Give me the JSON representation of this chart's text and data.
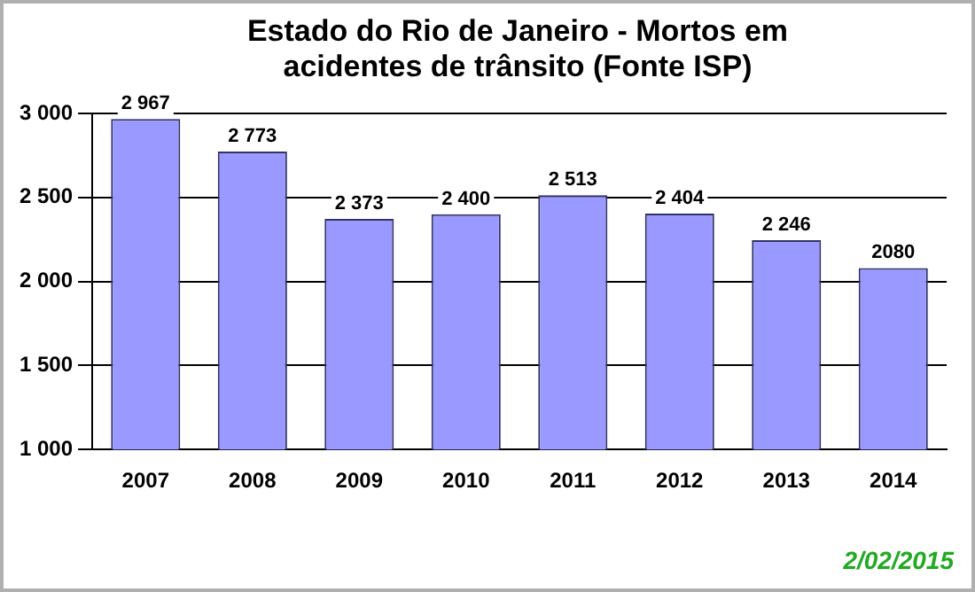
{
  "chart_data": {
    "type": "bar",
    "title": "Estado do Rio de Janeiro - Mortos em acidentes de trânsito (Fonte ISP)",
    "categories": [
      "2007",
      "2008",
      "2009",
      "2010",
      "2011",
      "2012",
      "2013",
      "2014"
    ],
    "values": [
      2967,
      2773,
      2373,
      2400,
      2513,
      2404,
      2246,
      2080
    ],
    "value_labels": [
      "2 967",
      "2 773",
      "2 373",
      "2 400",
      "2 513",
      "2 404",
      "2 246",
      "2080"
    ],
    "color": "#9999ff",
    "ylim": [
      1000,
      3000
    ],
    "yticks": [
      {
        "value": 1000,
        "label": "1 000"
      },
      {
        "value": 1500,
        "label": "1 500"
      },
      {
        "value": 2000,
        "label": "2 000"
      },
      {
        "value": 2500,
        "label": "2 500"
      },
      {
        "value": 3000,
        "label": "3 000"
      }
    ],
    "grid": "y",
    "annotations": [
      "2/02/2015"
    ]
  }
}
